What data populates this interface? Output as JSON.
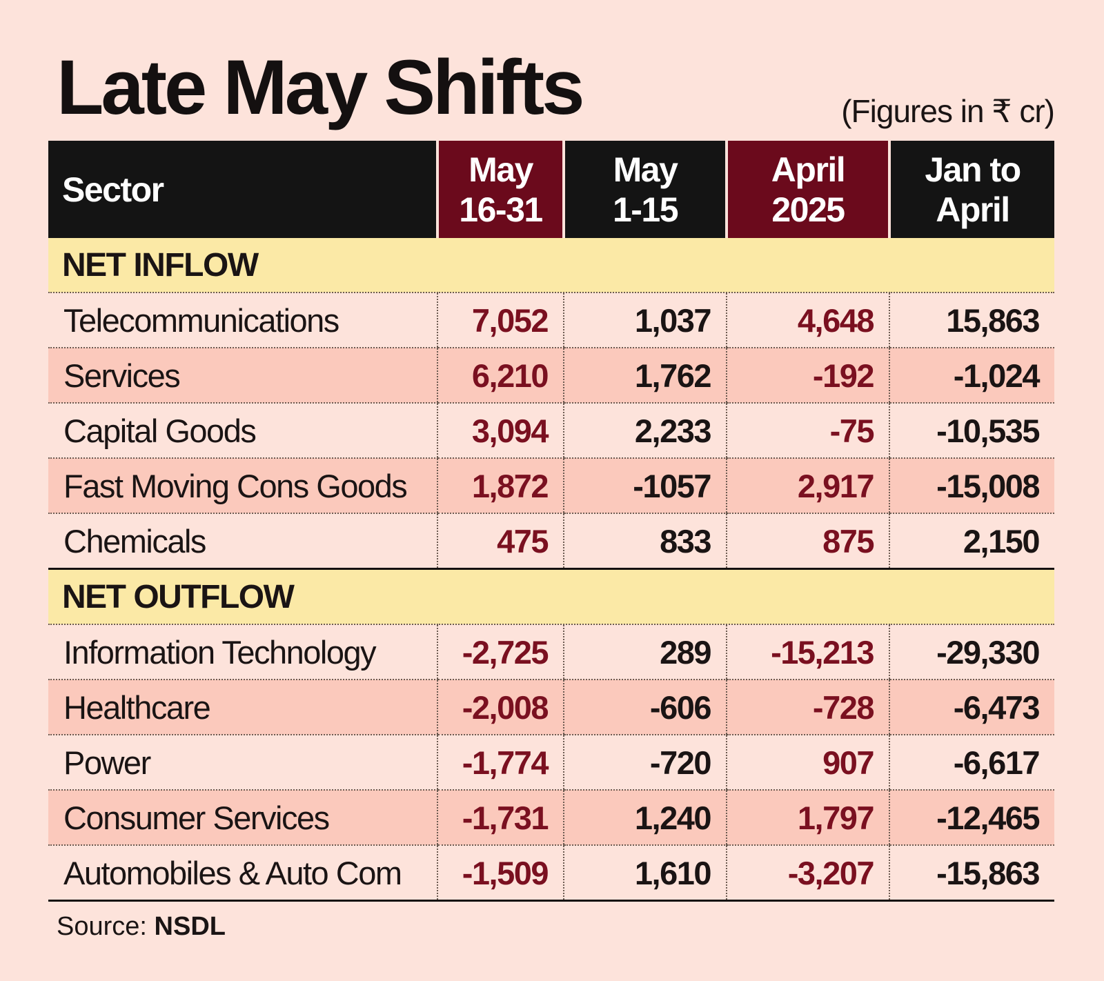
{
  "title": "Late May Shifts",
  "units_note": "(Figures in ₹ cr)",
  "columns": [
    "Sector",
    "May 16-31",
    "May 1-15",
    "April 2025",
    "Jan to April"
  ],
  "column_lines": [
    [
      "Sector"
    ],
    [
      "May",
      "16-31"
    ],
    [
      "May",
      "1-15"
    ],
    [
      "April",
      "2025"
    ],
    [
      "Jan to",
      "April"
    ]
  ],
  "colors": {
    "background": "#fde3db",
    "header_dark": "#141414",
    "header_maroon": "#6b0a1c",
    "section_band": "#fbe9a6",
    "stripe": "#fbc9bc",
    "maroon_text": "#7a1020"
  },
  "sections": [
    {
      "label": "NET INFLOW",
      "rows": [
        {
          "sector": "Telecommunications",
          "values": [
            "7,052",
            "1,037",
            "4,648",
            "15,863"
          ]
        },
        {
          "sector": "Services",
          "values": [
            "6,210",
            "1,762",
            "-192",
            "-1,024"
          ]
        },
        {
          "sector": "Capital Goods",
          "values": [
            "3,094",
            "2,233",
            "-75",
            "-10,535"
          ]
        },
        {
          "sector": "Fast Moving Cons Goods",
          "values": [
            "1,872",
            "-1057",
            "2,917",
            "-15,008"
          ]
        },
        {
          "sector": "Chemicals",
          "values": [
            "475",
            "833",
            "875",
            "2,150"
          ]
        }
      ]
    },
    {
      "label": "NET OUTFLOW",
      "rows": [
        {
          "sector": "Information Technology",
          "values": [
            "-2,725",
            "289",
            "-15,213",
            "-29,330"
          ]
        },
        {
          "sector": "Healthcare",
          "values": [
            "-2,008",
            "-606",
            "-728",
            "-6,473"
          ]
        },
        {
          "sector": "Power",
          "values": [
            "-1,774",
            "-720",
            "907",
            "-6,617"
          ]
        },
        {
          "sector": "Consumer Services",
          "values": [
            "-1,731",
            "1,240",
            "1,797",
            "-12,465"
          ]
        },
        {
          "sector": "Automobiles & Auto Com",
          "values": [
            "-1,509",
            "1,610",
            "-3,207",
            "-15,863"
          ]
        }
      ]
    }
  ],
  "source": {
    "label": "Source:",
    "value": "NSDL"
  }
}
